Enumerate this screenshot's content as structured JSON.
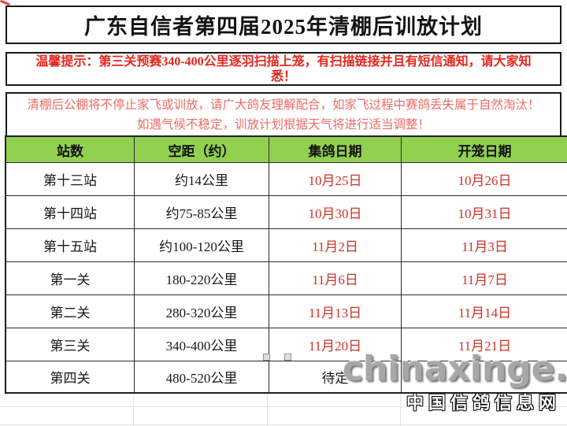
{
  "page": {
    "title": "广东自信者第四届2025年清棚后训放计划",
    "notice_primary_lines": [
      "温馨提示：第三关预赛340-400公里逐羽扫描上笼，有扫描链接并且有短信通知，请大家知",
      "悉！"
    ],
    "notice_secondary_lines": [
      "清棚后公棚将不停止家飞或训放，请广大鸽友理解配合，如家飞过程中赛鸽丢失属于自然淘汰！",
      "如遇气候不稳定，训放计划根据天气将进行适当调整！"
    ]
  },
  "table": {
    "headers": [
      "站数",
      "空距（约）",
      "集鸽日期",
      "开笼日期"
    ],
    "rows": [
      {
        "station": "第十三站",
        "distance": "约14公里",
        "collect": "10月25日",
        "release": "10月26日",
        "collect_plain": false
      },
      {
        "station": "第十四站",
        "distance": "约75-85公里",
        "collect": "10月30日",
        "release": "10月31日",
        "collect_plain": false
      },
      {
        "station": "第十五站",
        "distance": "约100-120公里",
        "collect": "11月2日",
        "release": "11月3日",
        "collect_plain": false
      },
      {
        "station": "第一关",
        "distance": "180-220公里",
        "collect": "11月6日",
        "release": "11月7日",
        "collect_plain": false
      },
      {
        "station": "第二关",
        "distance": "280-320公里",
        "collect": "11月13日",
        "release": "11月14日",
        "collect_plain": false
      },
      {
        "station": "第三关",
        "distance": "340-400公里",
        "collect": "11月20日",
        "release": "11月21日",
        "collect_plain": false
      },
      {
        "station": "第四关",
        "distance": "480-520公里",
        "collect": "待定",
        "release": "",
        "collect_plain": true
      }
    ]
  },
  "watermark": {
    "site": "chinaxinge.com",
    "name": "中国信鸽信息网"
  },
  "colors": {
    "header_green": "#92d050",
    "notice1_red": "#e8251d",
    "notice2_red": "#ee6b65",
    "date_red": "#cf3227",
    "title_black": "#141414"
  }
}
